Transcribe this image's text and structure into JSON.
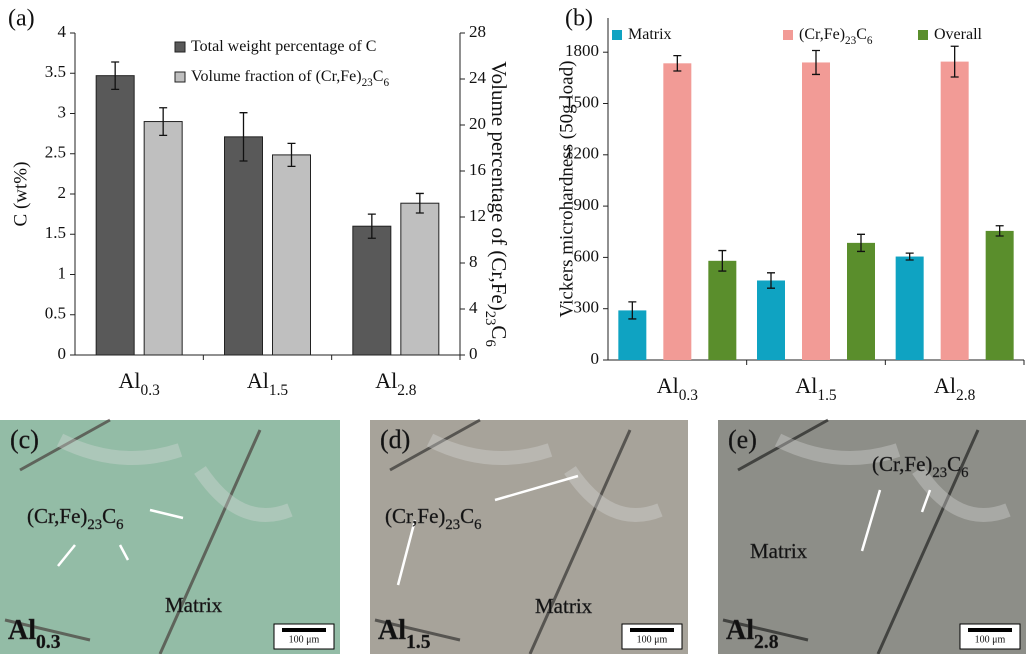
{
  "chart_data": [
    {
      "type": "bar",
      "panel_label": "(a)",
      "ylabel": "C (wt%)",
      "y2label": "Volume percentage of (Cr,Fe)23C6",
      "categories": [
        "Al0.3",
        "Al1.5",
        "Al2.8"
      ],
      "ylim": [
        0,
        4
      ],
      "yticks": [
        0,
        0.5,
        1,
        1.5,
        2,
        2.5,
        3,
        3.5,
        4
      ],
      "y2lim": [
        0,
        28
      ],
      "y2ticks": [
        0,
        4,
        8,
        12,
        16,
        20,
        24,
        28
      ],
      "series": [
        {
          "name": "Total weight percentage of C",
          "color": "#595959",
          "values": [
            3.47,
            2.71,
            1.6
          ],
          "errors": [
            0.17,
            0.3,
            0.15
          ]
        },
        {
          "name": "Volume fraction of (Cr,Fe)23C6",
          "color": "#bfbfbf",
          "axis": "y2",
          "values": [
            20.3,
            17.4,
            13.2
          ],
          "errors": [
            1.2,
            1.0,
            0.85
          ]
        }
      ]
    },
    {
      "type": "bar",
      "panel_label": "(b)",
      "ylabel": "Vickers microhardness (50g load)",
      "categories": [
        "Al0.3",
        "Al1.5",
        "Al2.8"
      ],
      "ylim": [
        0,
        2000
      ],
      "yticks": [
        0,
        300,
        600,
        900,
        1200,
        1500,
        1800
      ],
      "series": [
        {
          "name": "Matrix",
          "color": "#0fa3c2",
          "values": [
            290,
            465,
            605
          ],
          "errors": [
            50,
            45,
            20
          ]
        },
        {
          "name": "(Cr,Fe)23C6",
          "color": "#f29b96",
          "values": [
            1735,
            1740,
            1745
          ],
          "errors": [
            45,
            70,
            90
          ]
        },
        {
          "name": "Overall",
          "color": "#5a8e2c",
          "values": [
            580,
            685,
            755
          ],
          "errors": [
            60,
            50,
            30
          ]
        }
      ]
    }
  ],
  "micrographs": [
    {
      "panel_label": "(c)",
      "phase_label": "(Cr,Fe)23C6",
      "matrix_label": "Matrix",
      "sample": "Al0.3",
      "scale_bar": "100 μm"
    },
    {
      "panel_label": "(d)",
      "phase_label": "(Cr,Fe)23C6",
      "matrix_label": "Matrix",
      "sample": "Al1.5",
      "scale_bar": "100 μm"
    },
    {
      "panel_label": "(e)",
      "phase_label": "(Cr,Fe)23C6",
      "matrix_label": "Matrix",
      "sample": "Al2.8",
      "scale_bar": "100 μm"
    }
  ]
}
